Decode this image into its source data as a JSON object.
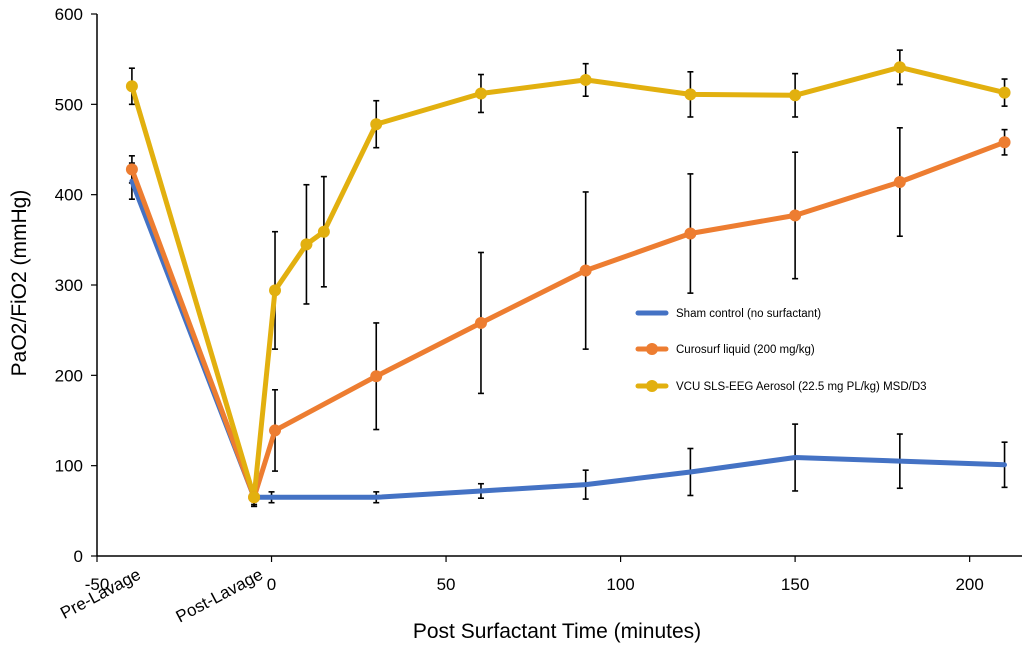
{
  "chart_data": {
    "type": "line",
    "xlabel": "Post Surfactant Time (minutes)",
    "ylabel": "PaO2/FiO2 (mmHg)",
    "xlim": [
      -50,
      215
    ],
    "ylim": [
      0,
      600
    ],
    "x_ticks": [
      -50,
      0,
      50,
      100,
      150,
      200
    ],
    "y_ticks": [
      0,
      100,
      200,
      300,
      400,
      500,
      600
    ],
    "grid": false,
    "legend_position": "right",
    "category_labels": [
      {
        "x": -40,
        "text": "Pre-Lavage"
      },
      {
        "x": -5,
        "text": "Post-Lavage"
      }
    ],
    "series": [
      {
        "name": "Sham control (no surfactant)",
        "color": "#4472C4",
        "x": [
          -40,
          -5,
          0,
          30,
          60,
          90,
          120,
          150,
          180,
          210
        ],
        "y": [
          415,
          65,
          65,
          65,
          72,
          79,
          93,
          109,
          105,
          101
        ],
        "err": [
          20,
          10,
          6,
          6,
          8,
          16,
          26,
          37,
          30,
          25
        ],
        "markers": false
      },
      {
        "name": "Curosurf liquid (200 mg/kg)",
        "color": "#ED7D31",
        "x": [
          -40,
          -5,
          1,
          30,
          60,
          90,
          120,
          150,
          180,
          210
        ],
        "y": [
          428,
          65,
          139,
          199,
          258,
          316,
          357,
          377,
          414,
          458
        ],
        "err": [
          15,
          10,
          45,
          59,
          78,
          87,
          66,
          70,
          60,
          14
        ],
        "markers": true
      },
      {
        "name": "VCU SLS-EEG Aerosol (22.5 mg PL/kg) MSD/D3",
        "color": "#E2B00F",
        "x": [
          -40,
          -5,
          1,
          10,
          15,
          30,
          60,
          90,
          120,
          150,
          180,
          210
        ],
        "y": [
          520,
          65,
          294,
          345,
          359,
          478,
          512,
          527,
          511,
          510,
          541,
          513
        ],
        "err": [
          20,
          8,
          65,
          66,
          61,
          26,
          21,
          18,
          25,
          24,
          19,
          15
        ],
        "markers": true
      }
    ]
  }
}
